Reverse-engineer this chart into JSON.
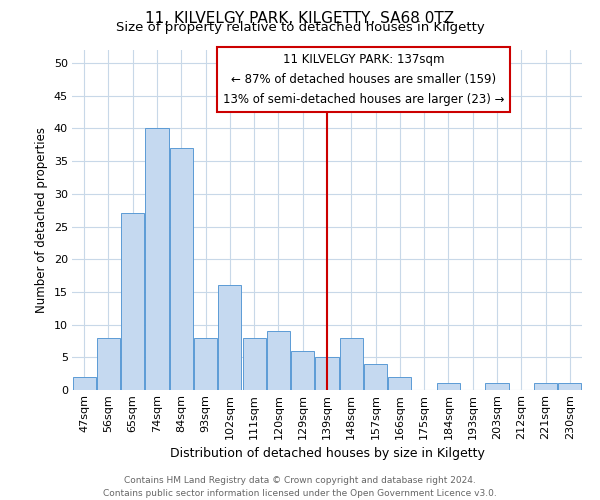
{
  "title": "11, KILVELGY PARK, KILGETTY, SA68 0TZ",
  "subtitle": "Size of property relative to detached houses in Kilgetty",
  "xlabel": "Distribution of detached houses by size in Kilgetty",
  "ylabel": "Number of detached properties",
  "bar_labels": [
    "47sqm",
    "56sqm",
    "65sqm",
    "74sqm",
    "84sqm",
    "93sqm",
    "102sqm",
    "111sqm",
    "120sqm",
    "129sqm",
    "139sqm",
    "148sqm",
    "157sqm",
    "166sqm",
    "175sqm",
    "184sqm",
    "193sqm",
    "203sqm",
    "212sqm",
    "221sqm",
    "230sqm"
  ],
  "bar_values": [
    2,
    8,
    27,
    40,
    37,
    8,
    16,
    8,
    9,
    6,
    5,
    8,
    4,
    2,
    0,
    1,
    0,
    1,
    0,
    1,
    1
  ],
  "bar_color": "#c5d9f0",
  "bar_edge_color": "#5b9bd5",
  "vline_x_index": 10,
  "vline_color": "#cc0000",
  "annotation_line1": "11 KILVELGY PARK: 137sqm",
  "annotation_line2": "← 87% of detached houses are smaller (159)",
  "annotation_line3": "13% of semi-detached houses are larger (23) →",
  "ylim": [
    0,
    52
  ],
  "yticks": [
    0,
    5,
    10,
    15,
    20,
    25,
    30,
    35,
    40,
    45,
    50
  ],
  "footer_text": "Contains HM Land Registry data © Crown copyright and database right 2024.\nContains public sector information licensed under the Open Government Licence v3.0.",
  "bg_color": "#ffffff",
  "grid_color": "#c8d8e8",
  "title_fontsize": 11,
  "subtitle_fontsize": 9.5,
  "bar_fontsize": 8,
  "ylabel_fontsize": 8.5,
  "xlabel_fontsize": 9
}
